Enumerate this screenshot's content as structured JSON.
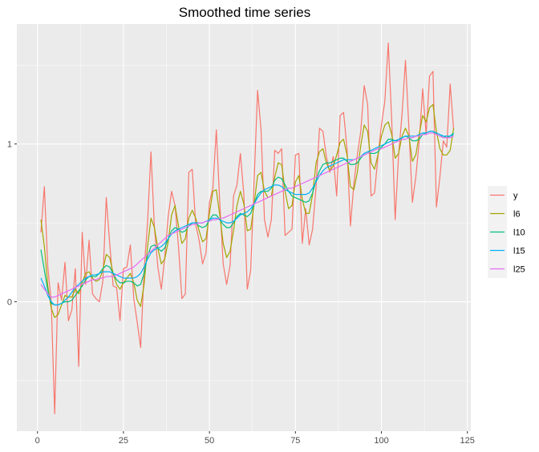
{
  "chart_data": {
    "type": "line",
    "title": "Smoothed time series",
    "xlabel": "",
    "ylabel": "",
    "xlim": [
      -6,
      126
    ],
    "ylim": [
      -0.82,
      1.76
    ],
    "x_ticks": [
      0,
      25,
      50,
      75,
      100,
      125
    ],
    "x_tick_labels": [
      "0",
      "25",
      "50",
      "75",
      "100",
      "125"
    ],
    "y_ticks": [
      0,
      1
    ],
    "y_tick_labels": [
      "0",
      "1"
    ],
    "grid": true,
    "legend_position": "right",
    "colors": {
      "panel": "#ebebeb",
      "grid_major": "#ffffff",
      "tick": "#333333"
    },
    "x": [
      1,
      2,
      3,
      4,
      5,
      6,
      7,
      8,
      9,
      10,
      11,
      12,
      13,
      14,
      15,
      16,
      17,
      18,
      19,
      20,
      21,
      22,
      23,
      24,
      25,
      26,
      27,
      28,
      29,
      30,
      31,
      32,
      33,
      34,
      35,
      36,
      37,
      38,
      39,
      40,
      41,
      42,
      43,
      44,
      45,
      46,
      47,
      48,
      49,
      50,
      51,
      52,
      53,
      54,
      55,
      56,
      57,
      58,
      59,
      60,
      61,
      62,
      63,
      64,
      65,
      66,
      67,
      68,
      69,
      70,
      71,
      72,
      73,
      74,
      75,
      76,
      77,
      78,
      79,
      80,
      81,
      82,
      83,
      84,
      85,
      86,
      87,
      88,
      89,
      90,
      91,
      92,
      93,
      94,
      95,
      96,
      97,
      98,
      99,
      100,
      101,
      102,
      103,
      104,
      105,
      106,
      107,
      108,
      109,
      110,
      111,
      112,
      113,
      114,
      115,
      116,
      117,
      118,
      119,
      120,
      121
    ],
    "series": [
      {
        "name": "y",
        "color": "#f8766d",
        "values": [
          0.44,
          0.73,
          0.22,
          0.0,
          -0.71,
          0.12,
          0.01,
          0.25,
          -0.12,
          -0.05,
          0.21,
          -0.41,
          0.44,
          0.11,
          0.39,
          0.05,
          0.02,
          0.0,
          0.13,
          0.66,
          0.37,
          0.1,
          0.09,
          -0.12,
          0.21,
          0.22,
          0.36,
          0.02,
          -0.13,
          -0.29,
          0.2,
          0.5,
          0.95,
          0.47,
          0.22,
          0.08,
          0.28,
          0.54,
          0.7,
          0.61,
          0.35,
          0.02,
          0.05,
          0.82,
          0.84,
          0.49,
          0.39,
          0.24,
          0.31,
          0.63,
          0.72,
          1.09,
          0.63,
          0.24,
          0.11,
          0.23,
          0.67,
          0.74,
          0.94,
          0.68,
          0.08,
          0.2,
          0.77,
          1.34,
          1.09,
          0.52,
          0.41,
          0.52,
          0.96,
          0.94,
          0.97,
          0.42,
          0.44,
          0.46,
          0.93,
          0.94,
          0.37,
          0.59,
          0.36,
          0.46,
          0.73,
          1.1,
          1.08,
          0.92,
          0.82,
          0.92,
          0.67,
          1.18,
          1.2,
          0.97,
          0.48,
          0.75,
          0.93,
          1.08,
          1.37,
          1.25,
          0.67,
          0.69,
          0.92,
          1.12,
          1.27,
          1.64,
          1.15,
          0.52,
          0.93,
          1.19,
          1.53,
          1.1,
          0.63,
          0.79,
          1.02,
          1.35,
          1.06,
          1.43,
          1.46,
          0.6,
          0.79,
          1.02,
          0.98,
          1.38,
          1.09
        ]
      },
      {
        "name": "l6",
        "color": "#a3a500",
        "values": [
          0.52,
          0.35,
          0.1,
          -0.04,
          -0.1,
          -0.08,
          -0.02,
          0.04,
          0.03,
          0.03,
          0.08,
          0.05,
          0.12,
          0.18,
          0.19,
          0.15,
          0.13,
          0.14,
          0.2,
          0.3,
          0.28,
          0.18,
          0.11,
          0.08,
          0.12,
          0.15,
          0.18,
          0.12,
          0.01,
          -0.03,
          0.11,
          0.35,
          0.53,
          0.47,
          0.34,
          0.24,
          0.27,
          0.38,
          0.55,
          0.61,
          0.48,
          0.37,
          0.4,
          0.53,
          0.58,
          0.53,
          0.45,
          0.38,
          0.4,
          0.56,
          0.7,
          0.71,
          0.55,
          0.37,
          0.28,
          0.32,
          0.45,
          0.61,
          0.7,
          0.62,
          0.45,
          0.46,
          0.62,
          0.8,
          0.82,
          0.7,
          0.66,
          0.67,
          0.79,
          0.88,
          0.87,
          0.7,
          0.59,
          0.61,
          0.76,
          0.8,
          0.65,
          0.56,
          0.56,
          0.68,
          0.88,
          0.95,
          0.97,
          0.88,
          0.83,
          0.86,
          0.93,
          1.01,
          1.03,
          0.93,
          0.73,
          0.71,
          0.82,
          0.99,
          1.12,
          1.08,
          0.88,
          0.84,
          0.93,
          1.05,
          1.12,
          1.14,
          1.06,
          0.91,
          0.94,
          1.05,
          1.1,
          1.05,
          0.89,
          0.93,
          1.06,
          1.18,
          1.14,
          1.23,
          1.25,
          1.08,
          0.97,
          0.93,
          0.93,
          0.96,
          1.1
        ]
      },
      {
        "name": "l10",
        "color": "#00bf7d",
        "values": [
          0.33,
          0.2,
          0.07,
          -0.01,
          -0.02,
          -0.02,
          -0.01,
          0.0,
          0.0,
          0.01,
          0.04,
          0.07,
          0.1,
          0.14,
          0.16,
          0.16,
          0.16,
          0.18,
          0.21,
          0.23,
          0.22,
          0.18,
          0.14,
          0.12,
          0.12,
          0.13,
          0.13,
          0.12,
          0.1,
          0.11,
          0.18,
          0.29,
          0.35,
          0.36,
          0.34,
          0.32,
          0.34,
          0.4,
          0.45,
          0.47,
          0.46,
          0.44,
          0.45,
          0.48,
          0.5,
          0.5,
          0.48,
          0.47,
          0.48,
          0.52,
          0.55,
          0.55,
          0.52,
          0.49,
          0.47,
          0.47,
          0.5,
          0.54,
          0.56,
          0.55,
          0.54,
          0.56,
          0.62,
          0.68,
          0.7,
          0.7,
          0.7,
          0.72,
          0.77,
          0.79,
          0.78,
          0.74,
          0.7,
          0.67,
          0.66,
          0.65,
          0.64,
          0.63,
          0.64,
          0.69,
          0.77,
          0.83,
          0.87,
          0.88,
          0.88,
          0.89,
          0.9,
          0.91,
          0.91,
          0.89,
          0.87,
          0.87,
          0.88,
          0.91,
          0.94,
          0.95,
          0.94,
          0.94,
          0.95,
          0.98,
          1.0,
          1.03,
          1.03,
          1.02,
          1.02,
          1.04,
          1.05,
          1.04,
          1.02,
          1.02,
          1.03,
          1.06,
          1.07,
          1.08,
          1.08,
          1.06,
          1.05,
          1.05,
          1.04,
          1.05,
          1.07
        ]
      },
      {
        "name": "l15",
        "color": "#00b0f6",
        "values": [
          0.15,
          0.1,
          0.04,
          0.0,
          -0.02,
          -0.02,
          -0.01,
          0.01,
          0.03,
          0.06,
          0.09,
          0.11,
          0.13,
          0.15,
          0.16,
          0.17,
          0.17,
          0.18,
          0.19,
          0.19,
          0.19,
          0.18,
          0.17,
          0.16,
          0.15,
          0.15,
          0.15,
          0.15,
          0.16,
          0.18,
          0.22,
          0.27,
          0.31,
          0.33,
          0.34,
          0.35,
          0.37,
          0.4,
          0.43,
          0.45,
          0.46,
          0.47,
          0.48,
          0.49,
          0.5,
          0.5,
          0.5,
          0.5,
          0.51,
          0.52,
          0.53,
          0.53,
          0.52,
          0.51,
          0.5,
          0.5,
          0.51,
          0.53,
          0.55,
          0.56,
          0.57,
          0.59,
          0.62,
          0.66,
          0.69,
          0.71,
          0.72,
          0.73,
          0.74,
          0.74,
          0.73,
          0.71,
          0.7,
          0.69,
          0.68,
          0.68,
          0.68,
          0.68,
          0.69,
          0.72,
          0.76,
          0.8,
          0.83,
          0.85,
          0.86,
          0.87,
          0.88,
          0.89,
          0.9,
          0.9,
          0.9,
          0.9,
          0.91,
          0.92,
          0.94,
          0.95,
          0.96,
          0.97,
          0.98,
          0.99,
          1.0,
          1.01,
          1.02,
          1.02,
          1.03,
          1.04,
          1.05,
          1.05,
          1.05,
          1.05,
          1.06,
          1.07,
          1.07,
          1.08,
          1.08,
          1.07,
          1.06,
          1.05,
          1.05,
          1.05,
          1.06
        ]
      },
      {
        "name": "l25",
        "color": "#e76bf3",
        "values": [
          0.11,
          0.08,
          0.05,
          0.03,
          0.03,
          0.04,
          0.05,
          0.06,
          0.07,
          0.08,
          0.09,
          0.1,
          0.11,
          0.12,
          0.13,
          0.14,
          0.14,
          0.15,
          0.15,
          0.16,
          0.16,
          0.16,
          0.17,
          0.18,
          0.19,
          0.2,
          0.21,
          0.22,
          0.24,
          0.26,
          0.28,
          0.3,
          0.32,
          0.34,
          0.36,
          0.38,
          0.4,
          0.42,
          0.43,
          0.44,
          0.45,
          0.46,
          0.47,
          0.48,
          0.49,
          0.49,
          0.5,
          0.5,
          0.51,
          0.51,
          0.52,
          0.52,
          0.53,
          0.53,
          0.54,
          0.55,
          0.56,
          0.57,
          0.58,
          0.59,
          0.6,
          0.61,
          0.62,
          0.63,
          0.64,
          0.65,
          0.66,
          0.67,
          0.68,
          0.69,
          0.7,
          0.71,
          0.72,
          0.72,
          0.73,
          0.74,
          0.75,
          0.76,
          0.77,
          0.78,
          0.79,
          0.8,
          0.81,
          0.82,
          0.83,
          0.84,
          0.85,
          0.86,
          0.87,
          0.88,
          0.89,
          0.9,
          0.91,
          0.92,
          0.93,
          0.94,
          0.95,
          0.96,
          0.97,
          0.97,
          0.98,
          0.99,
          1.0,
          1.01,
          1.02,
          1.03,
          1.03,
          1.04,
          1.04,
          1.05,
          1.05,
          1.06,
          1.06,
          1.07,
          1.07,
          1.06,
          1.05,
          1.04,
          1.04,
          1.04,
          1.05
        ]
      }
    ]
  }
}
